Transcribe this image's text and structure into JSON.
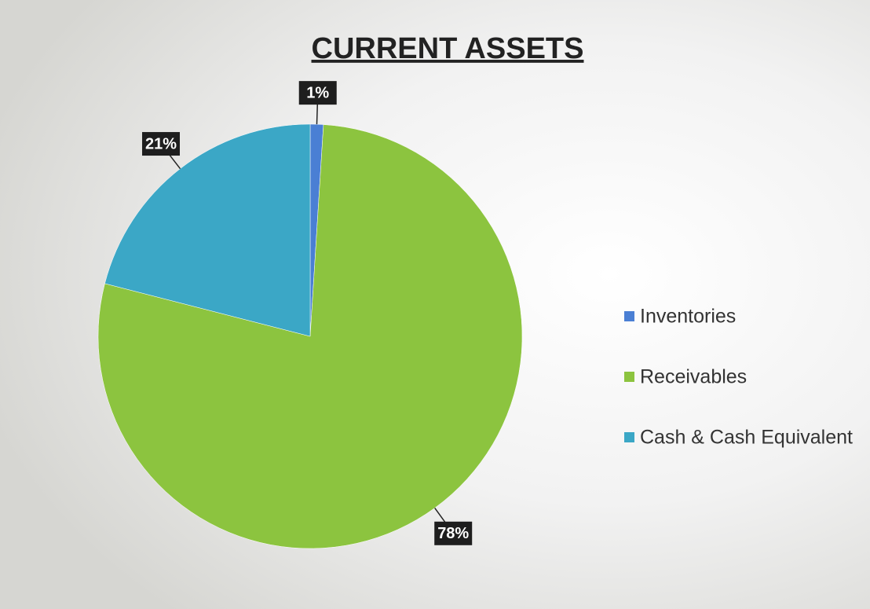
{
  "chart_data": {
    "type": "pie",
    "title": "CURRENT ASSETS",
    "categories": [
      "Inventories",
      "Receivables",
      "Cash & Cash Equivalent"
    ],
    "values": [
      1,
      78,
      21
    ],
    "value_labels": [
      "1%",
      "78%",
      "21%"
    ],
    "colors": [
      "#4a7fd4",
      "#8cc43f",
      "#3ba7c6"
    ],
    "legend": "right"
  }
}
